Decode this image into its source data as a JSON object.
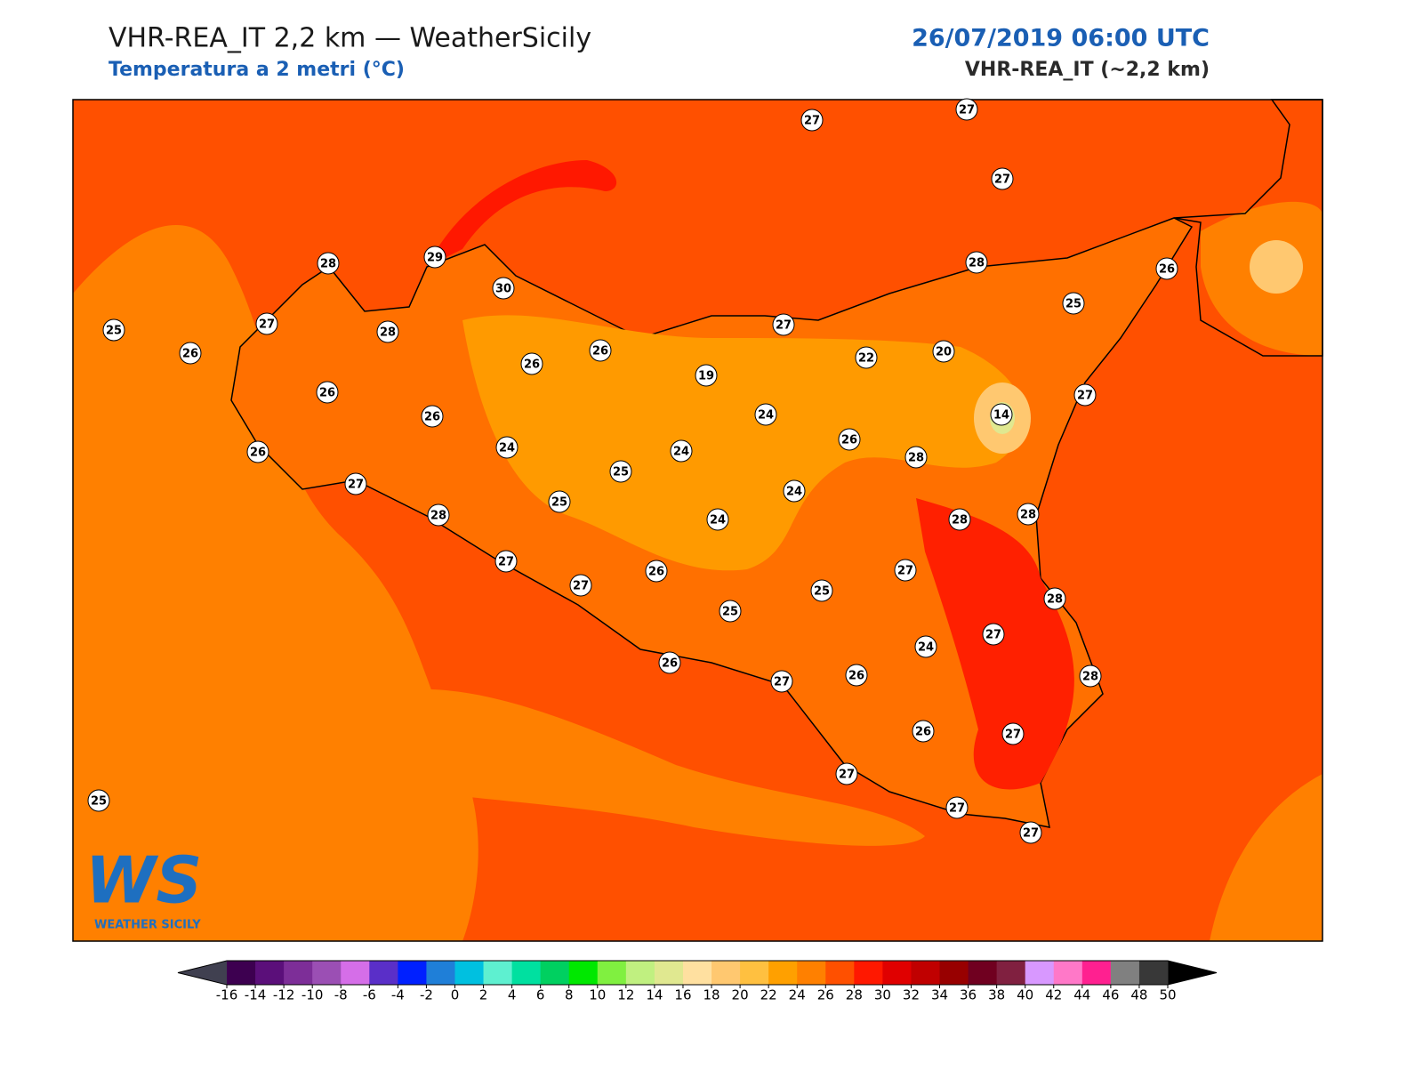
{
  "header": {
    "title": "VHR-REA_IT 2,2 km — WeatherSicily",
    "subtitle": "Temperatura a 2 metri (°C)",
    "datetime": "26/07/2019 06:00 UTC",
    "model": "VHR-REA_IT (~2,2 km)"
  },
  "logo": {
    "mark": "WS",
    "name": "WEATHER SICILY"
  },
  "stations": [
    27,
    27,
    27,
    28,
    29,
    30,
    28,
    26,
    25,
    25,
    27,
    26,
    28,
    27,
    26,
    26,
    19,
    22,
    20,
    27,
    26,
    26,
    14,
    24,
    26,
    24,
    24,
    26,
    28,
    25,
    27,
    24,
    25,
    24,
    28,
    28,
    28,
    27,
    27,
    26,
    27,
    25,
    28,
    25,
    24,
    27,
    26,
    27,
    26,
    28,
    26,
    27,
    27,
    25,
    27,
    27
  ],
  "colorbar": {
    "ticks": [
      -16,
      -14,
      -12,
      -10,
      -8,
      -6,
      -4,
      -2,
      0,
      2,
      4,
      6,
      8,
      10,
      12,
      14,
      16,
      18,
      20,
      22,
      24,
      26,
      28,
      30,
      32,
      34,
      36,
      38,
      40,
      42,
      44,
      46,
      48,
      50
    ],
    "colors": [
      "#3d0050",
      "#5b0f7a",
      "#7d2e98",
      "#9b4fb4",
      "#d56ee8",
      "#5a2fc8",
      "#0020ff",
      "#1f7fd8",
      "#00c0e0",
      "#5ef0d0",
      "#00e0a0",
      "#00d060",
      "#00e800",
      "#80f040",
      "#c0f080",
      "#e0e890",
      "#ffe0a0",
      "#ffc870",
      "#ffc040",
      "#ffa000",
      "#ff8000",
      "#ff5000",
      "#ff1800",
      "#e00000",
      "#c00000",
      "#980000",
      "#700020",
      "#802040",
      "#d898ff",
      "#ff78c8",
      "#ff2090",
      "#808080",
      "#383838"
    ],
    "under_color": "#404050",
    "over_color": "#000000"
  }
}
